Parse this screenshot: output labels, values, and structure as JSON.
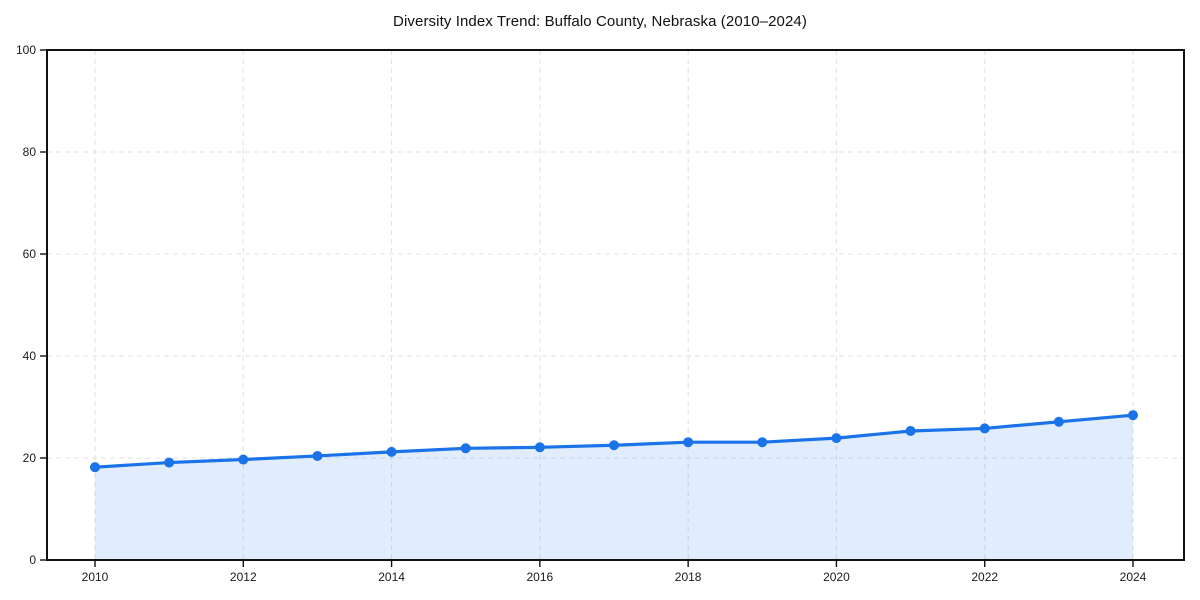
{
  "chart_data": {
    "type": "area",
    "title": "Diversity Index Trend: Buffalo County, Nebraska (2010–2024)",
    "series_name": "Diversity Index",
    "x": [
      2010,
      2011,
      2012,
      2013,
      2014,
      2015,
      2016,
      2017,
      2018,
      2019,
      2020,
      2021,
      2022,
      2023,
      2024
    ],
    "values": [
      18.2,
      19.1,
      19.7,
      20.4,
      21.2,
      21.9,
      22.1,
      22.5,
      23.1,
      23.1,
      23.9,
      25.3,
      25.8,
      27.1,
      28.4
    ],
    "xlabel": "",
    "ylabel": "",
    "ylim": [
      0,
      100
    ],
    "xticks": [
      2010,
      2012,
      2014,
      2016,
      2018,
      2020,
      2022,
      2024
    ],
    "yticks": [
      0,
      20,
      40,
      60,
      80,
      100
    ],
    "grid": true,
    "grid_style": "dashed",
    "legend": "none",
    "colors": {
      "line": "#1a73e8",
      "marker": "#1a73e8",
      "area_fill": "rgba(26,115,232,0.13)",
      "grid": "#e0e0e0",
      "spine": "#111111",
      "tick_label": "#1b1b1b",
      "background": "#ffffff"
    }
  }
}
